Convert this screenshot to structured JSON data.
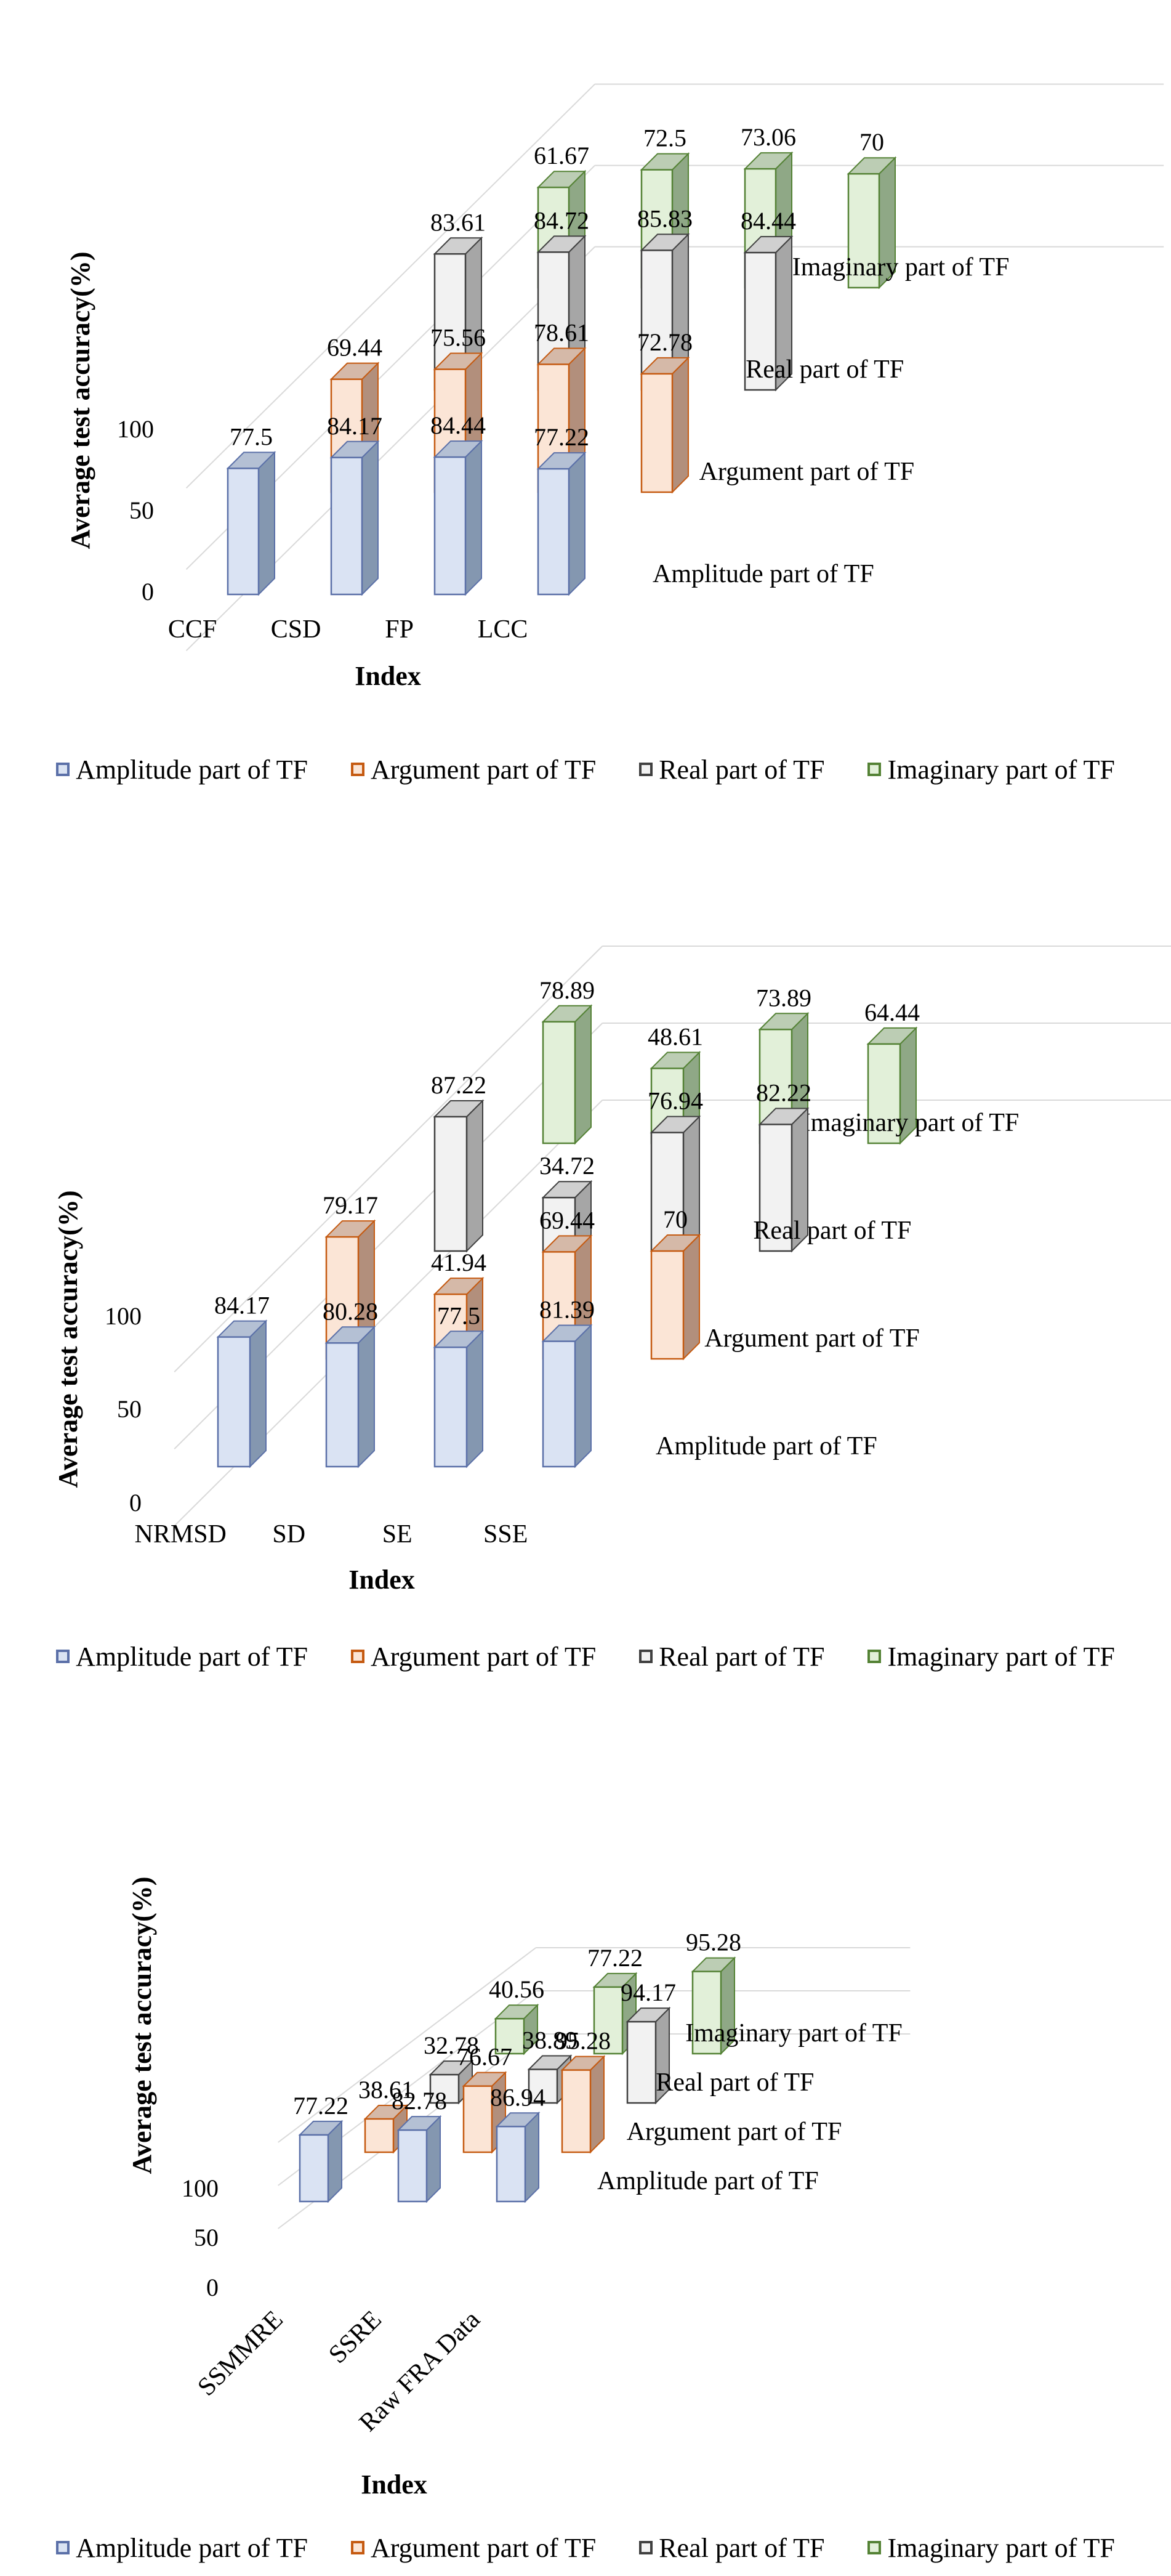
{
  "colors": {
    "Amplitude part of TF": {
      "front": "#dae3f3",
      "edge": "#5b70a8",
      "side": "#8497b0",
      "top": "#b4c0d4"
    },
    "Argument part of TF": {
      "front": "#fbe5d6",
      "edge": "#c55a11",
      "side": "#b28f7c",
      "top": "#d5b9a8"
    },
    "Real part of TF": {
      "front": "#f2f2f2",
      "edge": "#404040",
      "side": "#a6a6a6",
      "top": "#d0d0d0"
    },
    "Imaginary part of TF": {
      "front": "#e2f0d9",
      "edge": "#548235",
      "side": "#8fa886",
      "top": "#bccdb4"
    }
  },
  "legend": [
    "Amplitude part of TF",
    "Argument part of TF",
    "Real part of TF",
    "Imaginary part of TF"
  ],
  "chart_data": [
    {
      "type": "bar",
      "style": "3d-column",
      "ylabel": "Average test accuracy(%)",
      "xlabel": "Index",
      "yticks": [
        "0",
        "50",
        "100"
      ],
      "ylim": [
        0,
        100
      ],
      "categories": [
        "CCF",
        "CSD",
        "FP",
        "LCC"
      ],
      "series": [
        {
          "name": "Amplitude part of TF",
          "values": [
            77.5,
            84.17,
            84.44,
            77.22
          ],
          "labels": [
            "77.5",
            "84.17",
            "84.44",
            "77.22"
          ]
        },
        {
          "name": "Argument part of TF",
          "values": [
            69.44,
            75.56,
            78.61,
            72.78
          ],
          "labels": [
            "69.44",
            "75.56",
            "78.61",
            "72.78"
          ]
        },
        {
          "name": "Real part of TF",
          "values": [
            83.61,
            84.72,
            85.83,
            84.44
          ],
          "labels": [
            "83.61",
            "84.72",
            "85.83",
            "84.44"
          ]
        },
        {
          "name": "Imaginary part of TF",
          "values": [
            61.67,
            72.5,
            73.06,
            70
          ],
          "labels": [
            "61.67",
            "72.5",
            "73.06",
            "70"
          ]
        }
      ]
    },
    {
      "type": "bar",
      "style": "3d-column",
      "ylabel": "Average test accuracy(%)",
      "xlabel": "Index",
      "yticks": [
        "0",
        "50",
        "100"
      ],
      "ylim": [
        0,
        100
      ],
      "categories": [
        "NRMSD",
        "SD",
        "SE",
        "SSE"
      ],
      "series": [
        {
          "name": "Amplitude part of TF",
          "values": [
            84.17,
            80.28,
            77.5,
            81.39
          ],
          "labels": [
            "84.17",
            "80.28",
            "77.5",
            "81.39"
          ]
        },
        {
          "name": "Argument part of TF",
          "values": [
            79.17,
            41.94,
            69.44,
            70
          ],
          "labels": [
            "79.17",
            "41.94",
            "69.44",
            "70"
          ]
        },
        {
          "name": "Real part of TF",
          "values": [
            87.22,
            34.72,
            76.94,
            82.22
          ],
          "labels": [
            "87.22",
            "34.72",
            "76.94",
            "82.22"
          ]
        },
        {
          "name": "Imaginary part of TF",
          "values": [
            78.89,
            48.61,
            73.89,
            64.44
          ],
          "labels": [
            "78.89",
            "48.61",
            "73.89",
            "64.44"
          ]
        }
      ]
    },
    {
      "type": "bar",
      "style": "3d-column",
      "ylabel": "Average test accuracy(%)",
      "xlabel": "Index",
      "yticks": [
        "0",
        "50",
        "100"
      ],
      "ylim": [
        0,
        100
      ],
      "categories": [
        "SSMMRE",
        "SSRE",
        "Raw FRA Data"
      ],
      "series": [
        {
          "name": "Amplitude part of TF",
          "values": [
            77.22,
            82.78,
            86.94
          ],
          "labels": [
            "77.22",
            "82.78",
            "86.94"
          ]
        },
        {
          "name": "Argument part of TF",
          "values": [
            38.61,
            76.67,
            95.28
          ],
          "labels": [
            "38.61",
            "76.67",
            "95.28"
          ]
        },
        {
          "name": "Real part of TF",
          "values": [
            32.78,
            38.89,
            94.17
          ],
          "labels": [
            "32.78",
            "38.89",
            "94.17"
          ]
        },
        {
          "name": "Imaginary part of TF",
          "values": [
            40.56,
            77.22,
            95.28
          ],
          "labels": [
            "40.56",
            "77.22",
            "95.28"
          ]
        }
      ]
    }
  ]
}
